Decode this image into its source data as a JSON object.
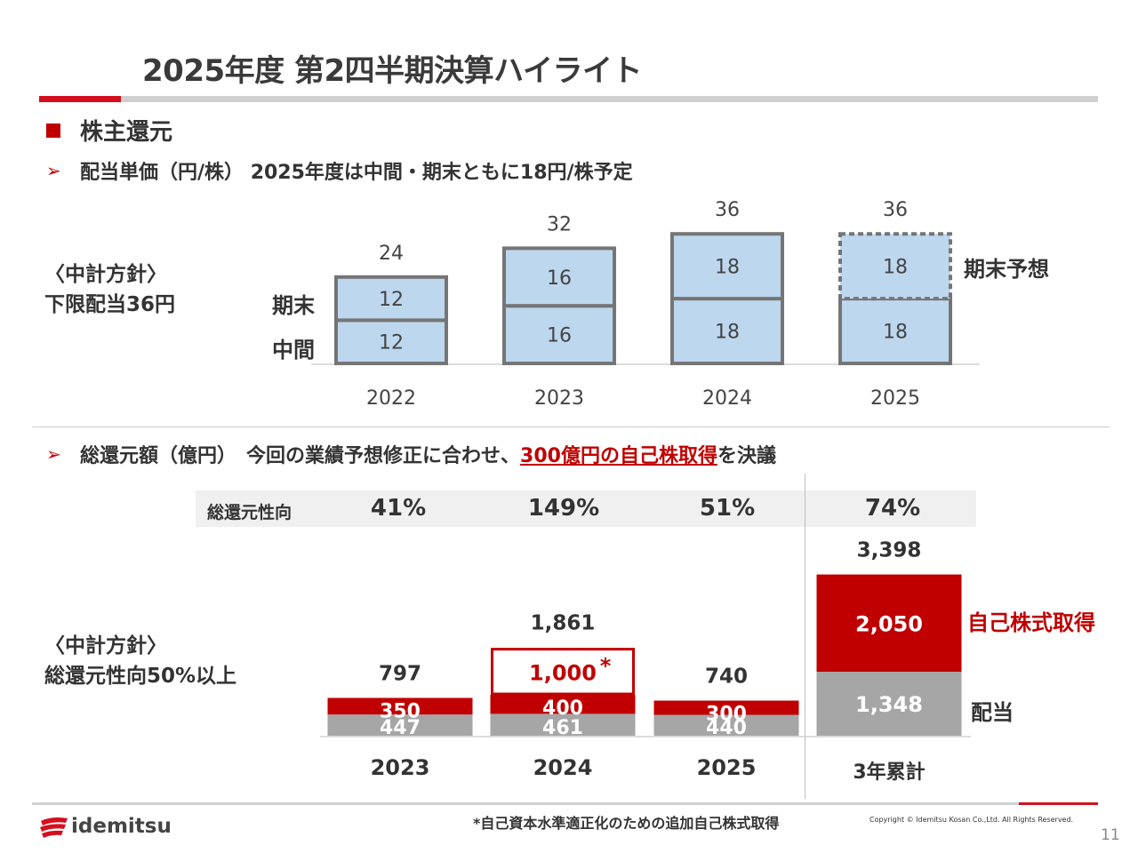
{
  "title": "2025年度 第2四半期決算ハイライト",
  "section": "株主還元",
  "dividend": {
    "heading": "配当単価（円/株） 2025年度は中間・期末ともに18円/株予定",
    "policy_line1": "〈中計方針〉",
    "policy_line2": "下限配当36円",
    "label_end": "期末",
    "label_interim": "中間",
    "label_forecast": "期末予想"
  },
  "total_return": {
    "heading_pre": "総還元額（億円）　今回の業績予想修正に合わせ、",
    "heading_highlight": "300億円の自己株取得",
    "heading_post": "を決議",
    "policy_line1": "〈中計方針〉",
    "policy_line2": "総還元性向50%以上",
    "ratio_label": "総還元性向",
    "ratios": [
      "41%",
      "149%",
      "51%",
      "74%"
    ],
    "label_buyback": "自己株式取得",
    "label_dividend": "配当",
    "asterisk": "*"
  },
  "chart_data": [
    {
      "type": "bar",
      "title": "配当単価（円/株）",
      "categories": [
        "2022",
        "2023",
        "2024",
        "2025"
      ],
      "series": [
        {
          "name": "中間",
          "values": [
            12,
            16,
            18,
            18
          ]
        },
        {
          "name": "期末",
          "values": [
            12,
            16,
            18,
            18
          ]
        }
      ],
      "totals": [
        24,
        32,
        36,
        36
      ],
      "forecast_index": 3
    },
    {
      "type": "bar",
      "title": "総還元額（億円）",
      "categories": [
        "2023",
        "2024",
        "2025",
        "3年累計"
      ],
      "series": [
        {
          "name": "配当",
          "values": [
            447,
            461,
            440,
            1348
          ]
        },
        {
          "name": "自己株式取得",
          "values": [
            350,
            400,
            300,
            2050
          ]
        },
        {
          "name": "追加自己株式取得",
          "values": [
            0,
            1000,
            0,
            0
          ]
        }
      ],
      "labels": {
        "dividend": [
          "447",
          "461",
          "440",
          "1,348"
        ],
        "buyback": [
          "350",
          "400",
          "300",
          "2,050"
        ],
        "extra": "1,000",
        "totals": [
          "797",
          "1,861",
          "740",
          "3,398"
        ]
      }
    }
  ],
  "footer": {
    "logo": "idemitsu",
    "note": "*自己資本水準適正化のための追加自己株式取得",
    "copyright": "Copyright © Idemitsu Kosan Co.,Ltd.  All Rights Reserved.",
    "page": "11"
  }
}
